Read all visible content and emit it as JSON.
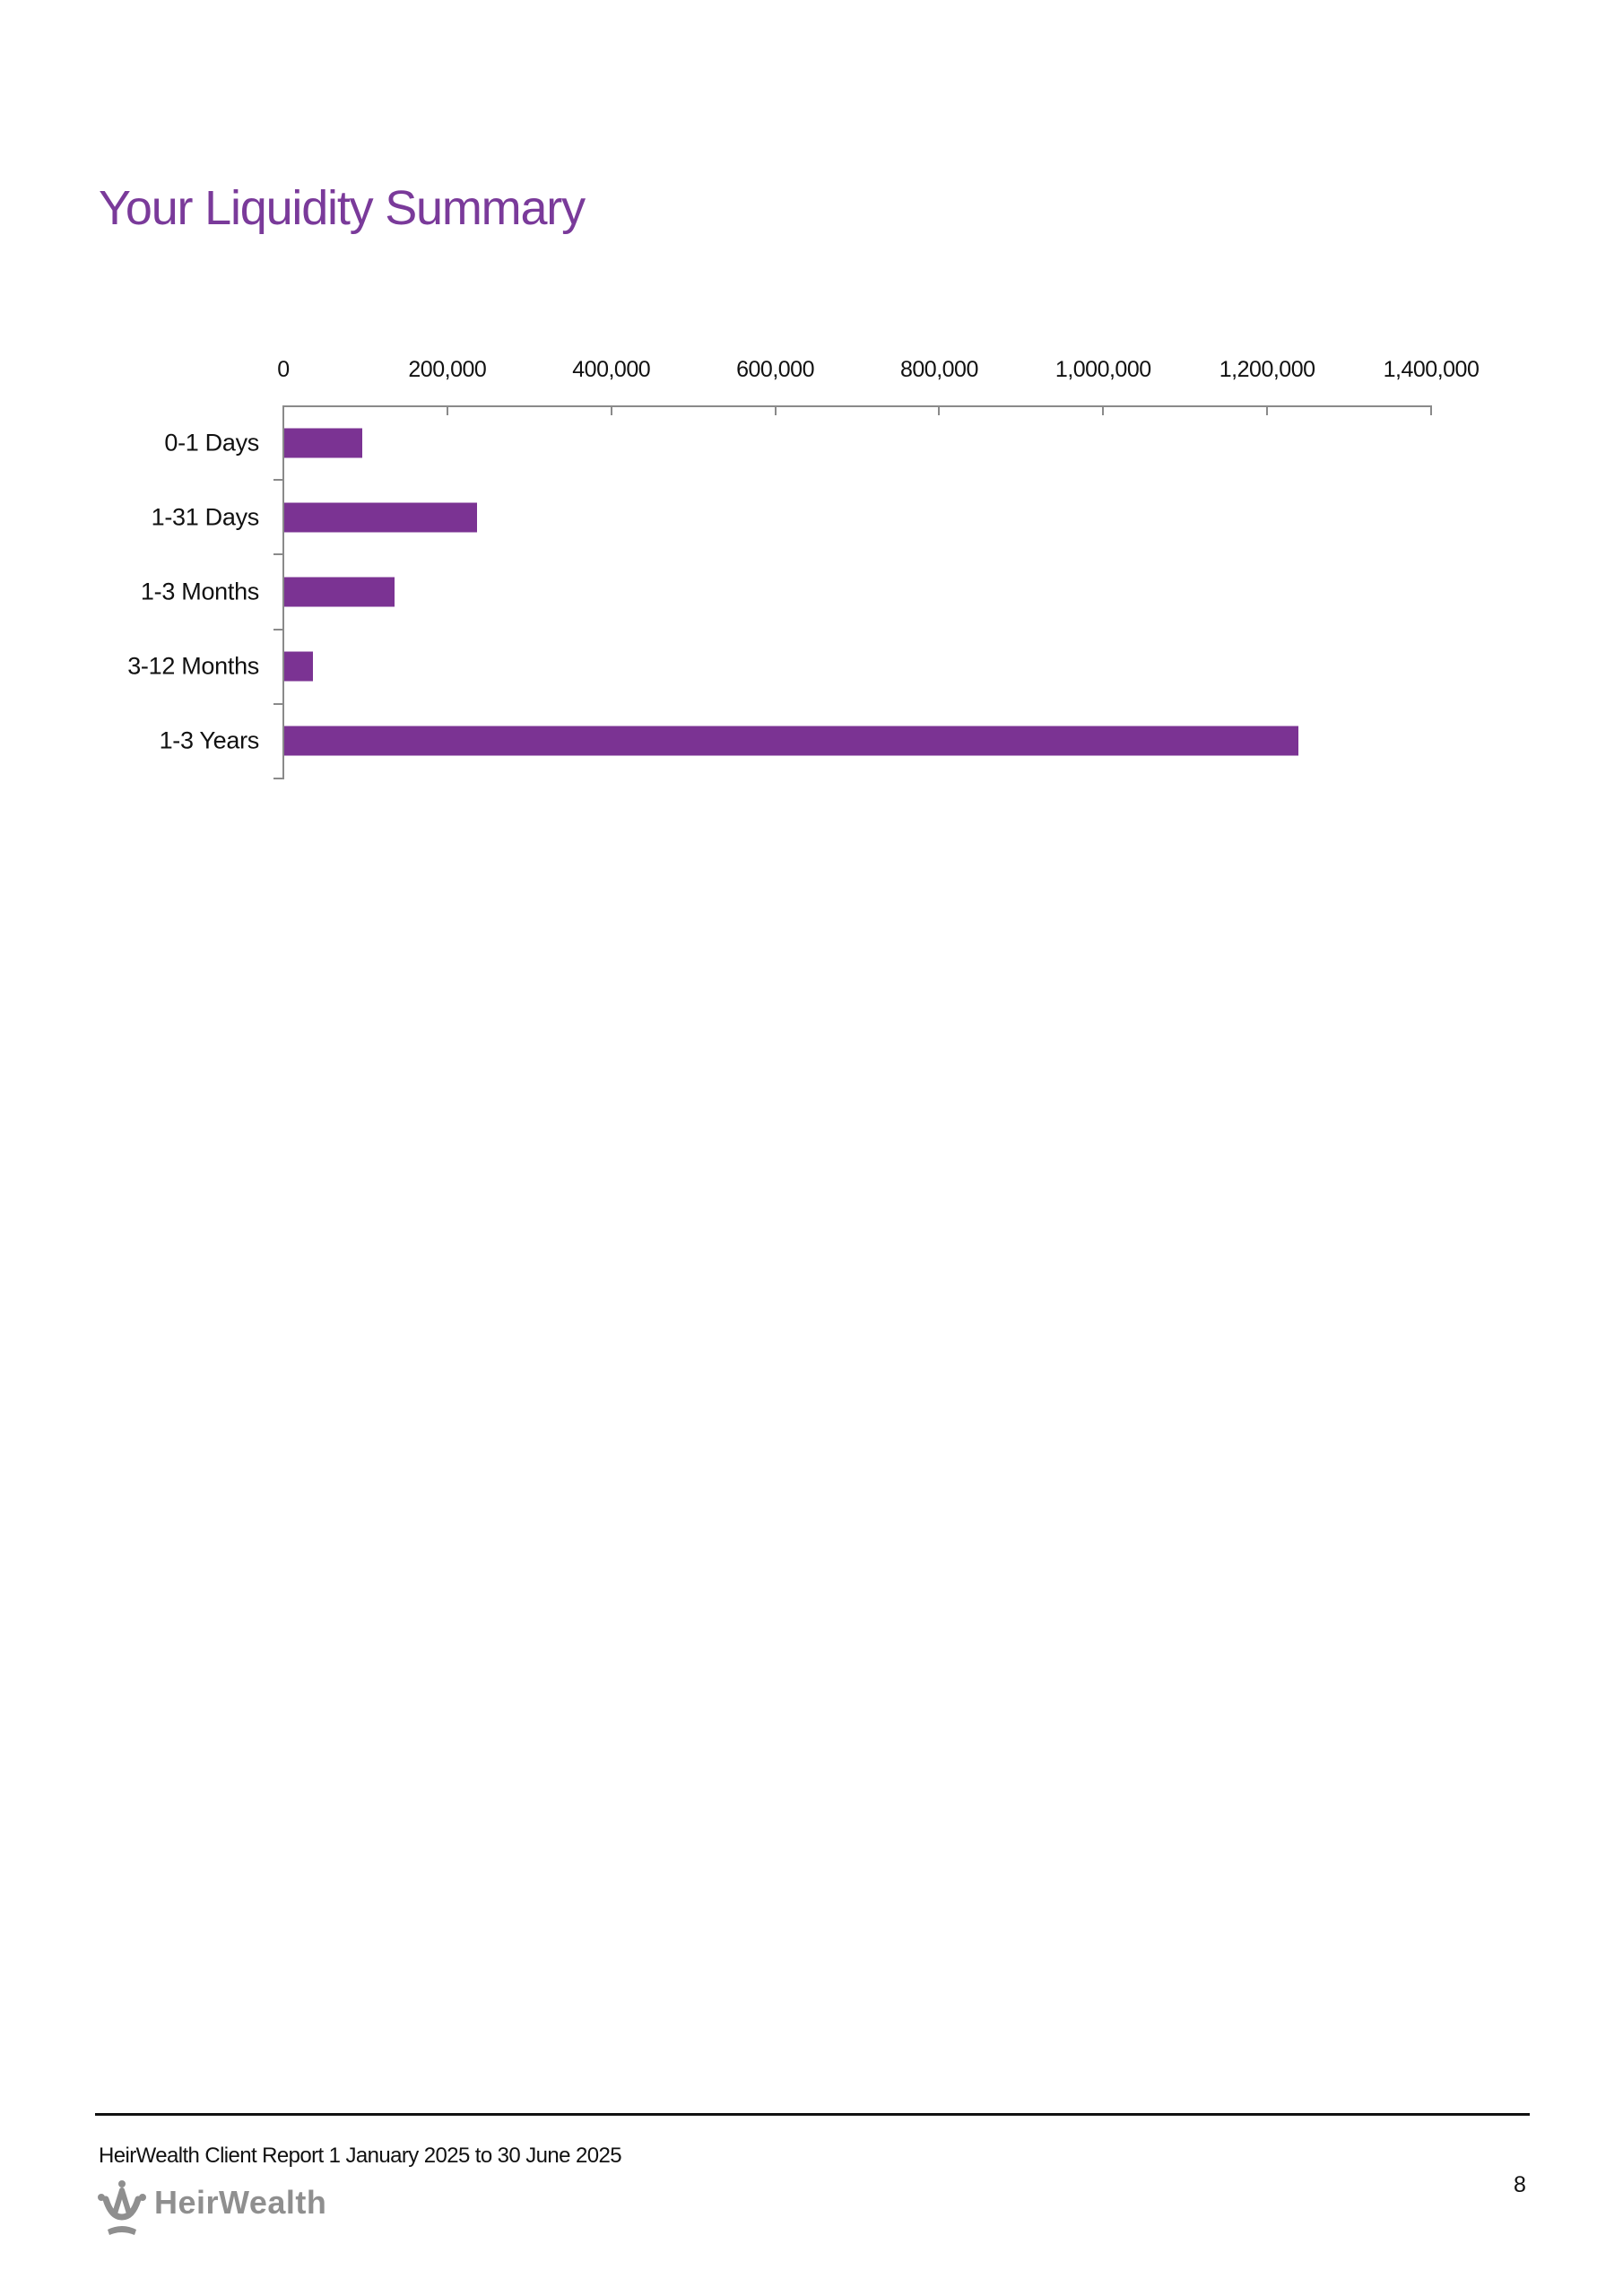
{
  "page": {
    "title": "Your Liquidity Summary",
    "page_number": "8"
  },
  "footer": {
    "report_text": "HeirWealth Client Report 1 January 2025 to 30 June 2025",
    "logo_text": "HeirWealth"
  },
  "colors": {
    "accent": "#7a3a9a",
    "bar": "#7b3393",
    "axis": "#8a8a8a",
    "logo_gray": "#8f8f8f"
  },
  "chart_data": {
    "type": "bar",
    "orientation": "horizontal",
    "title": "",
    "xlabel": "",
    "ylabel": "",
    "categories": [
      "0-1 Days",
      "1-31 Days",
      "1-3 Months",
      "3-12 Months",
      "1-3 Years"
    ],
    "values": [
      95000,
      235000,
      135000,
      35000,
      1237000
    ],
    "xlim": [
      0,
      1400000
    ],
    "x_ticks": [
      0,
      200000,
      400000,
      600000,
      800000,
      1000000,
      1200000,
      1400000
    ],
    "x_tick_labels": [
      "0",
      "200,000",
      "400,000",
      "600,000",
      "800,000",
      "1,000,000",
      "1,200,000",
      "1,400,000"
    ],
    "x_axis_position": "top",
    "grid": false,
    "legend": null
  }
}
